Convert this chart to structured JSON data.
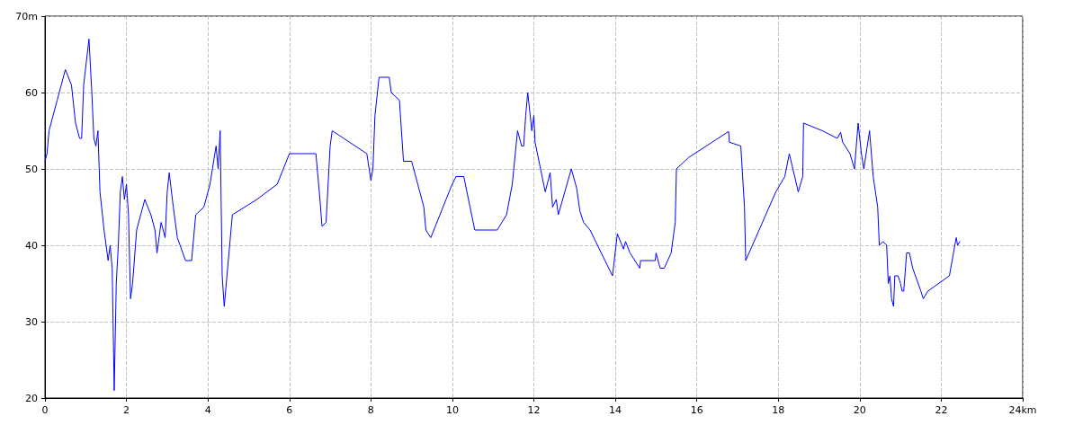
{
  "chart_data": {
    "type": "line",
    "color": "#0000ff",
    "marker": "none",
    "grid": true,
    "xlim": [
      0,
      24
    ],
    "ylim": [
      20,
      70
    ],
    "xticks": [
      0,
      2,
      4,
      6,
      8,
      10,
      12,
      14,
      16,
      18,
      20,
      22,
      {
        "value": 24,
        "label": "24km"
      }
    ],
    "yticks": [
      20,
      30,
      40,
      50,
      60,
      {
        "value": 70,
        "label": "70m"
      }
    ],
    "x": [
      0,
      0.05,
      0.1,
      0.3,
      0.5,
      0.65,
      0.75,
      0.85,
      0.9,
      0.95,
      1.08,
      1.15,
      1.2,
      1.25,
      1.3,
      1.35,
      1.45,
      1.5,
      1.55,
      1.6,
      1.65,
      1.7,
      1.75,
      1.8,
      1.85,
      1.9,
      1.95,
      2.0,
      2.05,
      2.1,
      2.15,
      2.25,
      2.35,
      2.45,
      2.6,
      2.7,
      2.75,
      2.85,
      2.95,
      3.0,
      3.05,
      3.15,
      3.25,
      3.45,
      3.6,
      3.7,
      3.9,
      4.05,
      4.2,
      4.25,
      4.3,
      4.35,
      4.4,
      4.6,
      5.2,
      5.7,
      6.0,
      6.65,
      6.75,
      6.8,
      6.9,
      7.0,
      7.05,
      7.9,
      8.0,
      8.05,
      8.1,
      8.2,
      8.45,
      8.5,
      8.7,
      8.8,
      9.0,
      9.3,
      9.35,
      9.47,
      9.98,
      10.09,
      10.28,
      10.55,
      11.1,
      11.33,
      11.47,
      11.6,
      11.7,
      11.75,
      11.8,
      11.85,
      11.95,
      12.0,
      12.03,
      12.28,
      12.4,
      12.46,
      12.55,
      12.6,
      12.92,
      13.05,
      13.13,
      13.22,
      13.38,
      13.93,
      14.05,
      14.2,
      14.25,
      14.36,
      14.6,
      14.62,
      14.98,
      15.0,
      15.1,
      15.2,
      15.37,
      15.47,
      15.5,
      15.8,
      16.78,
      16.8,
      17.08,
      17.17,
      17.2,
      17.94,
      18.16,
      18.27,
      18.49,
      18.6,
      18.62,
      19.08,
      19.45,
      19.53,
      19.58,
      19.76,
      19.87,
      19.96,
      20.04,
      20.1,
      20.24,
      20.33,
      20.44,
      20.48,
      20.57,
      20.66,
      20.7,
      20.74,
      20.78,
      20.83,
      20.86,
      20.94,
      21.0,
      21.04,
      21.08,
      21.15,
      21.22,
      21.3,
      21.5,
      21.56,
      21.67,
      22.2,
      22.3,
      22.35,
      22.37,
      22.4,
      22.46
    ],
    "values": [
      51,
      52,
      55,
      59,
      63,
      61,
      56,
      54,
      54,
      61,
      67,
      60,
      54,
      53,
      55,
      47,
      42,
      40,
      38,
      40,
      37,
      21,
      35,
      40,
      47,
      49,
      46,
      48,
      44,
      33,
      35,
      42,
      44,
      46,
      44,
      42,
      39,
      43,
      41,
      47,
      49.5,
      45,
      41,
      38,
      38,
      44,
      45,
      48,
      53,
      50,
      55,
      36,
      32,
      44,
      46,
      48,
      52,
      52,
      46,
      42.5,
      43,
      53,
      55,
      52,
      48.5,
      50,
      57,
      62,
      62,
      60,
      59,
      51,
      51,
      45,
      42,
      41,
      47.8,
      49,
      49,
      42,
      42,
      44,
      48,
      55,
      53,
      53,
      57,
      60,
      55,
      57,
      53.5,
      47,
      49.5,
      45,
      46,
      44,
      50,
      47.5,
      44.5,
      43,
      42,
      36,
      41.5,
      39.5,
      40.5,
      39,
      37,
      38,
      38,
      39,
      37,
      37,
      39,
      43,
      50,
      51.5,
      54.9,
      53.5,
      53,
      45,
      38,
      47,
      49,
      52,
      47,
      49,
      56,
      55,
      54,
      54.8,
      53.5,
      52,
      50,
      56,
      52,
      50,
      55,
      49,
      45,
      40,
      40.5,
      40,
      35,
      36,
      33,
      32,
      36,
      36,
      35,
      34,
      34,
      39,
      39,
      37,
      34,
      33,
      34,
      36,
      39,
      40.5,
      41,
      40,
      40.5
    ]
  }
}
